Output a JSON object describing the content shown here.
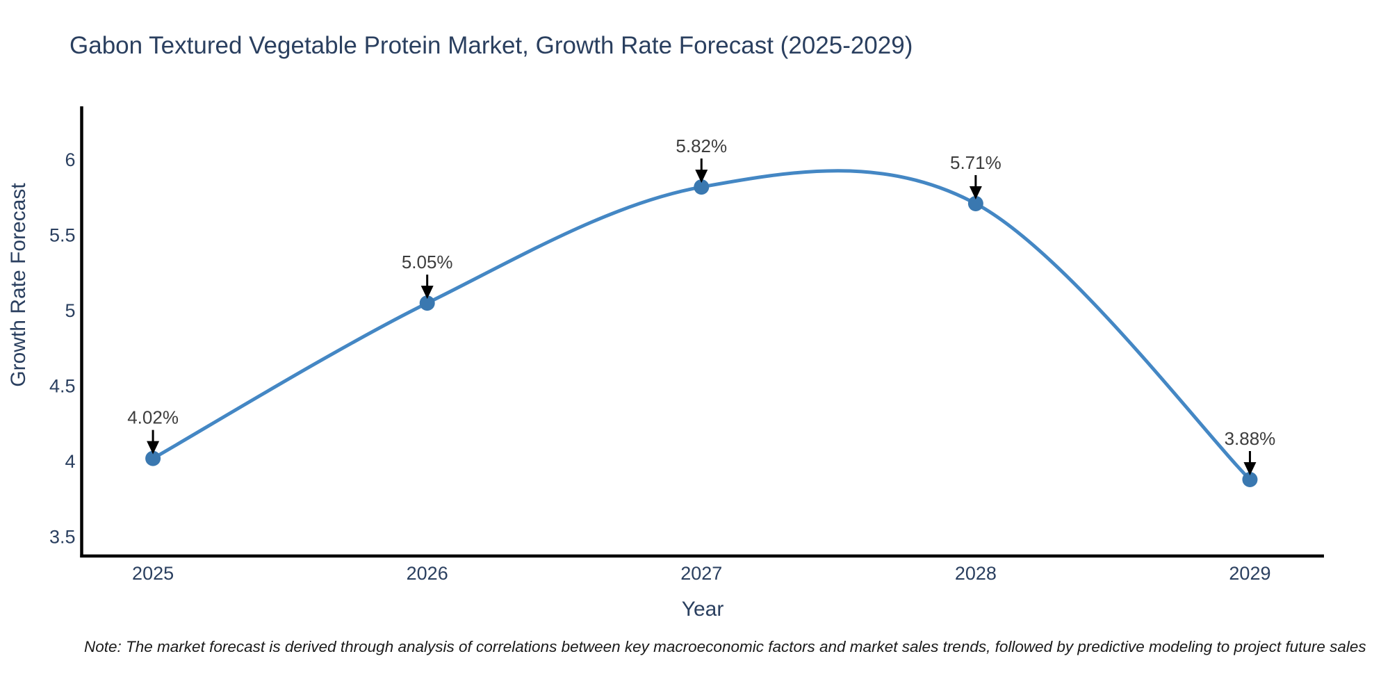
{
  "title": "Gabon Textured Vegetable Protein Market, Growth Rate Forecast (2025-2029)",
  "note": "Note: The market forecast is derived through analysis of correlations between key macroeconomic factors and market sales trends, followed by predictive modeling to project future sales",
  "chart_data": {
    "type": "line",
    "title": "Gabon Textured Vegetable Protein Market, Growth Rate Forecast (2025-2029)",
    "xlabel": "Year",
    "ylabel": "Growth Rate Forecast",
    "x": [
      2025,
      2026,
      2027,
      2028,
      2029
    ],
    "series": [
      {
        "name": "Growth Rate Forecast",
        "values": [
          4.02,
          5.05,
          5.82,
          5.71,
          3.88
        ]
      }
    ],
    "labels": [
      "4.02%",
      "5.05%",
      "5.82%",
      "5.71%",
      "3.88%"
    ],
    "line_shape": "spline",
    "grid": false,
    "legend": "none",
    "xticks": [
      2025,
      2026,
      2027,
      2028,
      2029
    ],
    "yticks": [
      3.5,
      4,
      4.5,
      5,
      5.5,
      6
    ],
    "xlim": [
      2024.74,
      2029.27
    ],
    "ylim": [
      3.373,
      6.355
    ],
    "line_color": "#4487c4",
    "marker_color": "#3a78b0",
    "marker_radius": 11,
    "annotation_color": "#3d3d3d",
    "arrow_color": "#000000",
    "axis_color": "#000000",
    "text_color": "#2a3f5f"
  }
}
